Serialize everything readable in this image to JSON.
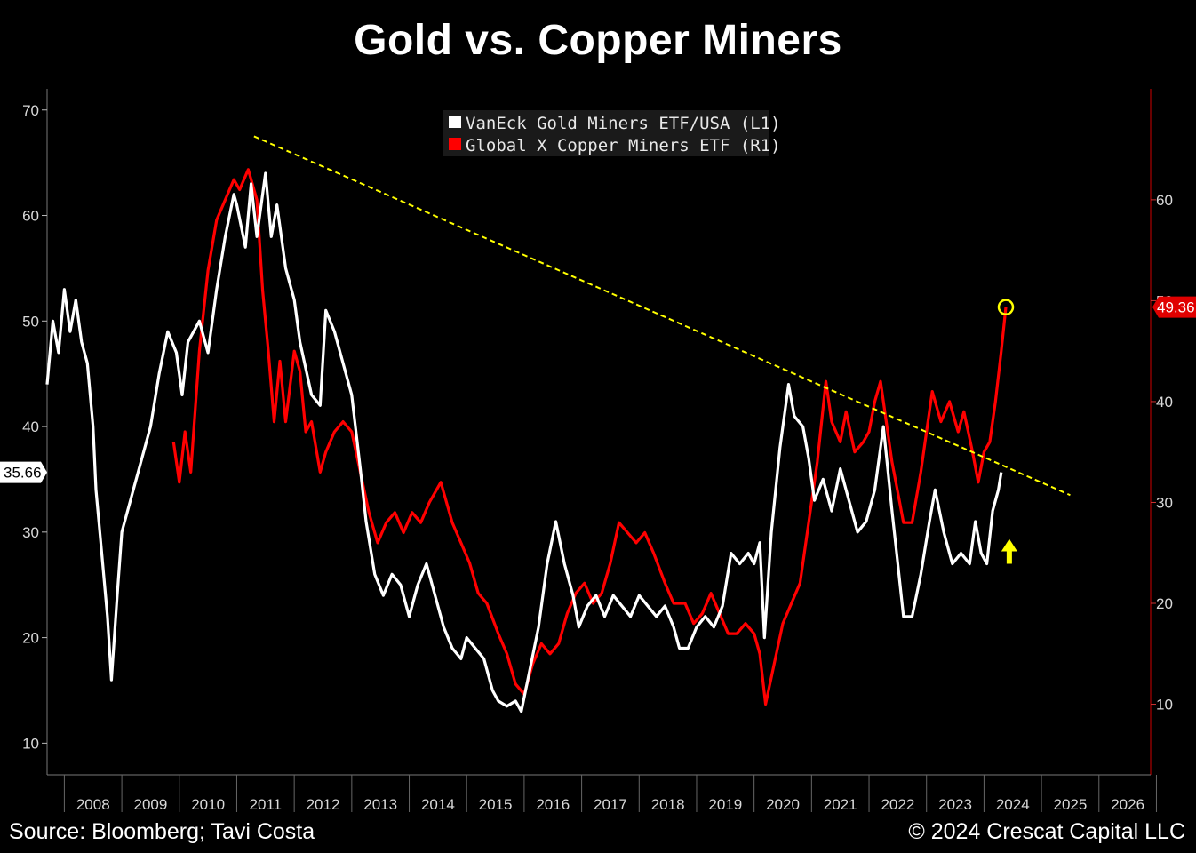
{
  "header": {
    "title": "Gold vs. Copper Miners"
  },
  "footer": {
    "source": "Source: Bloomberg; Tavi Costa",
    "copyright": "© 2024 Crescat Capital LLC"
  },
  "colors": {
    "gold_series": "#ffffff",
    "copper_series": "#ff0000",
    "trendline": "#ffff00",
    "axis": "#8b0000"
  },
  "chart_data": {
    "type": "line",
    "title": "Gold vs. Copper Miners",
    "x_range": [
      2007.7,
      2026.9
    ],
    "categories": [
      "2008",
      "2009",
      "2010",
      "2011",
      "2012",
      "2013",
      "2014",
      "2015",
      "2016",
      "2017",
      "2018",
      "2019",
      "2020",
      "2021",
      "2022",
      "2023",
      "2024",
      "2025",
      "2026"
    ],
    "left_axis": {
      "ylim": [
        7,
        72
      ],
      "ticks": [
        10,
        20,
        30,
        40,
        50,
        60,
        70
      ]
    },
    "right_axis": {
      "ylim": [
        3,
        71
      ],
      "ticks": [
        10,
        20,
        30,
        40,
        50,
        60
      ]
    },
    "legend": {
      "position": "top-center"
    },
    "series": [
      {
        "name": "VanEck Gold Miners ETF/USA  (L1)",
        "axis": "left",
        "last_value_label": "35.66",
        "points": [
          [
            2007.7,
            44
          ],
          [
            2007.8,
            50
          ],
          [
            2007.9,
            47
          ],
          [
            2008.0,
            53
          ],
          [
            2008.1,
            49
          ],
          [
            2008.2,
            52
          ],
          [
            2008.3,
            48
          ],
          [
            2008.4,
            46
          ],
          [
            2008.5,
            40
          ],
          [
            2008.55,
            34
          ],
          [
            2008.65,
            28
          ],
          [
            2008.75,
            22
          ],
          [
            2008.82,
            16
          ],
          [
            2008.92,
            24
          ],
          [
            2009.0,
            30
          ],
          [
            2009.15,
            33
          ],
          [
            2009.3,
            36
          ],
          [
            2009.5,
            40
          ],
          [
            2009.65,
            45
          ],
          [
            2009.8,
            49
          ],
          [
            2009.95,
            47
          ],
          [
            2010.05,
            43
          ],
          [
            2010.15,
            48
          ],
          [
            2010.35,
            50
          ],
          [
            2010.5,
            47
          ],
          [
            2010.65,
            53
          ],
          [
            2010.8,
            58
          ],
          [
            2010.95,
            62
          ],
          [
            2011.0,
            61
          ],
          [
            2011.15,
            57
          ],
          [
            2011.25,
            63
          ],
          [
            2011.35,
            58
          ],
          [
            2011.5,
            64
          ],
          [
            2011.6,
            58
          ],
          [
            2011.7,
            61
          ],
          [
            2011.85,
            55
          ],
          [
            2012.0,
            52
          ],
          [
            2012.1,
            48
          ],
          [
            2012.3,
            43
          ],
          [
            2012.45,
            42
          ],
          [
            2012.55,
            51
          ],
          [
            2012.7,
            49
          ],
          [
            2012.85,
            46
          ],
          [
            2013.0,
            43
          ],
          [
            2013.15,
            36
          ],
          [
            2013.25,
            31
          ],
          [
            2013.4,
            26
          ],
          [
            2013.55,
            24
          ],
          [
            2013.7,
            26
          ],
          [
            2013.85,
            25
          ],
          [
            2014.0,
            22
          ],
          [
            2014.15,
            25
          ],
          [
            2014.3,
            27
          ],
          [
            2014.45,
            24
          ],
          [
            2014.6,
            21
          ],
          [
            2014.75,
            19
          ],
          [
            2014.9,
            18
          ],
          [
            2015.0,
            20
          ],
          [
            2015.15,
            19
          ],
          [
            2015.3,
            18
          ],
          [
            2015.45,
            15
          ],
          [
            2015.55,
            14
          ],
          [
            2015.7,
            13.5
          ],
          [
            2015.85,
            14
          ],
          [
            2015.95,
            13
          ],
          [
            2016.1,
            17
          ],
          [
            2016.25,
            21
          ],
          [
            2016.4,
            27
          ],
          [
            2016.55,
            31
          ],
          [
            2016.7,
            27
          ],
          [
            2016.85,
            24
          ],
          [
            2016.95,
            21
          ],
          [
            2017.1,
            23
          ],
          [
            2017.25,
            24
          ],
          [
            2017.4,
            22
          ],
          [
            2017.55,
            24
          ],
          [
            2017.7,
            23
          ],
          [
            2017.85,
            22
          ],
          [
            2018.0,
            24
          ],
          [
            2018.15,
            23
          ],
          [
            2018.3,
            22
          ],
          [
            2018.45,
            23
          ],
          [
            2018.6,
            21
          ],
          [
            2018.7,
            19
          ],
          [
            2018.85,
            19
          ],
          [
            2019.0,
            21
          ],
          [
            2019.15,
            22
          ],
          [
            2019.3,
            21
          ],
          [
            2019.45,
            23
          ],
          [
            2019.6,
            28
          ],
          [
            2019.75,
            27
          ],
          [
            2019.9,
            28
          ],
          [
            2020.0,
            27
          ],
          [
            2020.1,
            29
          ],
          [
            2020.18,
            20
          ],
          [
            2020.3,
            30
          ],
          [
            2020.45,
            38
          ],
          [
            2020.6,
            44
          ],
          [
            2020.7,
            41
          ],
          [
            2020.85,
            40
          ],
          [
            2020.95,
            37
          ],
          [
            2021.05,
            33
          ],
          [
            2021.2,
            35
          ],
          [
            2021.35,
            32
          ],
          [
            2021.5,
            36
          ],
          [
            2021.65,
            33
          ],
          [
            2021.8,
            30
          ],
          [
            2021.95,
            31
          ],
          [
            2022.1,
            34
          ],
          [
            2022.25,
            40
          ],
          [
            2022.4,
            32
          ],
          [
            2022.5,
            27
          ],
          [
            2022.6,
            22
          ],
          [
            2022.75,
            22
          ],
          [
            2022.9,
            26
          ],
          [
            2023.05,
            31
          ],
          [
            2023.15,
            34
          ],
          [
            2023.3,
            30
          ],
          [
            2023.45,
            27
          ],
          [
            2023.6,
            28
          ],
          [
            2023.75,
            27
          ],
          [
            2023.85,
            31
          ],
          [
            2023.95,
            28
          ],
          [
            2024.05,
            27
          ],
          [
            2024.15,
            32
          ],
          [
            2024.25,
            34
          ],
          [
            2024.3,
            35.66
          ]
        ]
      },
      {
        "name": "Global X Copper Miners ETF  (R1)",
        "axis": "right",
        "last_value_label": "49.36",
        "points": [
          [
            2009.9,
            36
          ],
          [
            2010.0,
            32
          ],
          [
            2010.1,
            37
          ],
          [
            2010.2,
            33
          ],
          [
            2010.35,
            45
          ],
          [
            2010.5,
            53
          ],
          [
            2010.65,
            58
          ],
          [
            2010.8,
            60
          ],
          [
            2010.95,
            62
          ],
          [
            2011.05,
            61
          ],
          [
            2011.2,
            63
          ],
          [
            2011.35,
            60
          ],
          [
            2011.45,
            51
          ],
          [
            2011.55,
            45
          ],
          [
            2011.65,
            38
          ],
          [
            2011.75,
            44
          ],
          [
            2011.85,
            38
          ],
          [
            2012.0,
            45
          ],
          [
            2012.1,
            43
          ],
          [
            2012.2,
            37
          ],
          [
            2012.3,
            38
          ],
          [
            2012.45,
            33
          ],
          [
            2012.55,
            35
          ],
          [
            2012.7,
            37
          ],
          [
            2012.85,
            38
          ],
          [
            2013.0,
            37
          ],
          [
            2013.15,
            33
          ],
          [
            2013.3,
            29
          ],
          [
            2013.45,
            26
          ],
          [
            2013.6,
            28
          ],
          [
            2013.75,
            29
          ],
          [
            2013.9,
            27
          ],
          [
            2014.05,
            29
          ],
          [
            2014.2,
            28
          ],
          [
            2014.35,
            30
          ],
          [
            2014.55,
            32
          ],
          [
            2014.75,
            28
          ],
          [
            2014.9,
            26
          ],
          [
            2015.05,
            24
          ],
          [
            2015.2,
            21
          ],
          [
            2015.35,
            20
          ],
          [
            2015.55,
            17
          ],
          [
            2015.7,
            15
          ],
          [
            2015.85,
            12
          ],
          [
            2016.0,
            11
          ],
          [
            2016.15,
            14
          ],
          [
            2016.3,
            16
          ],
          [
            2016.45,
            15
          ],
          [
            2016.6,
            16
          ],
          [
            2016.75,
            19
          ],
          [
            2016.9,
            21
          ],
          [
            2017.05,
            22
          ],
          [
            2017.2,
            20
          ],
          [
            2017.35,
            21
          ],
          [
            2017.5,
            24
          ],
          [
            2017.65,
            28
          ],
          [
            2017.8,
            27
          ],
          [
            2017.95,
            26
          ],
          [
            2018.1,
            27
          ],
          [
            2018.25,
            25
          ],
          [
            2018.45,
            22
          ],
          [
            2018.6,
            20
          ],
          [
            2018.8,
            20
          ],
          [
            2018.95,
            18
          ],
          [
            2019.1,
            19
          ],
          [
            2019.25,
            21
          ],
          [
            2019.4,
            19
          ],
          [
            2019.55,
            17
          ],
          [
            2019.7,
            17
          ],
          [
            2019.85,
            18
          ],
          [
            2020.0,
            17
          ],
          [
            2020.1,
            15
          ],
          [
            2020.2,
            10
          ],
          [
            2020.35,
            14
          ],
          [
            2020.5,
            18
          ],
          [
            2020.65,
            20
          ],
          [
            2020.8,
            22
          ],
          [
            2020.95,
            28
          ],
          [
            2021.1,
            34
          ],
          [
            2021.25,
            42
          ],
          [
            2021.35,
            38
          ],
          [
            2021.5,
            36
          ],
          [
            2021.6,
            39
          ],
          [
            2021.75,
            35
          ],
          [
            2021.9,
            36
          ],
          [
            2022.0,
            37
          ],
          [
            2022.1,
            40
          ],
          [
            2022.2,
            42
          ],
          [
            2022.3,
            38
          ],
          [
            2022.4,
            34
          ],
          [
            2022.5,
            31
          ],
          [
            2022.6,
            28
          ],
          [
            2022.75,
            28
          ],
          [
            2022.9,
            33
          ],
          [
            2023.0,
            37
          ],
          [
            2023.1,
            41
          ],
          [
            2023.25,
            38
          ],
          [
            2023.4,
            40
          ],
          [
            2023.55,
            37
          ],
          [
            2023.65,
            39
          ],
          [
            2023.8,
            35
          ],
          [
            2023.9,
            32
          ],
          [
            2024.0,
            35
          ],
          [
            2024.1,
            36
          ],
          [
            2024.2,
            40
          ],
          [
            2024.3,
            45
          ],
          [
            2024.38,
            49.36
          ]
        ]
      }
    ],
    "trendline": {
      "axis": "left",
      "from": [
        2011.3,
        67.5
      ],
      "to": [
        2025.5,
        33.5
      ]
    },
    "annotations": {
      "arrow": "up",
      "circle_at": [
        2024.38,
        49.36
      ]
    }
  }
}
